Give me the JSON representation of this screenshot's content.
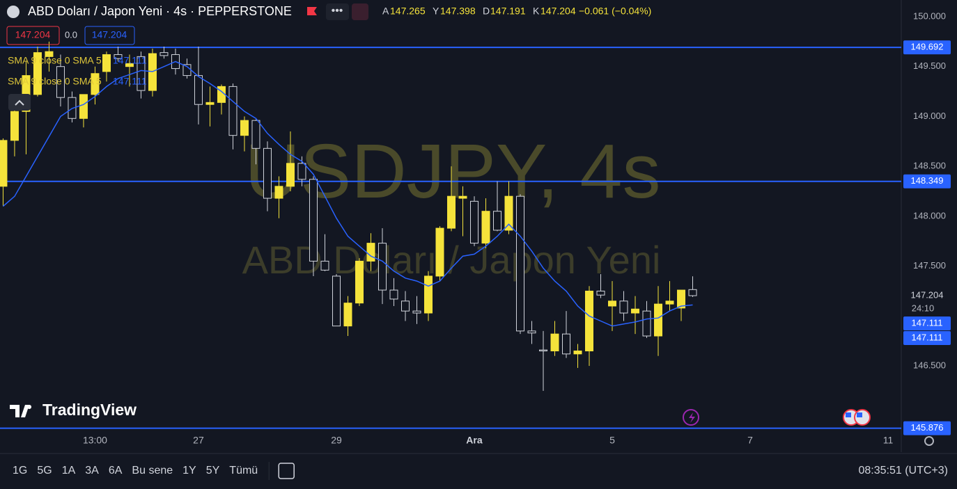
{
  "header": {
    "title": "ABD Doları / Japon Yeni · 4s · PEPPERSTONE",
    "ohlc_labels": [
      "A",
      "Y",
      "D",
      "K"
    ],
    "change": "−0.061 (−0.04%)"
  },
  "legend": {
    "spread": "0.0",
    "indicators": [
      {
        "label": "SMA 9 close 0 SMA 5"
      },
      {
        "label": "SMA 9 close 0 SMA 5"
      }
    ]
  },
  "watermark": {
    "symbol": "USDJPY, 4s",
    "name": "ABD Doları / Japon Yeni"
  },
  "countdown": "24:10",
  "logo": "TradingView",
  "toolbar": {
    "ranges": [
      "1G",
      "5G",
      "1A",
      "3A",
      "6A",
      "Bu sene",
      "1Y",
      "5Y",
      "Tümü"
    ],
    "clock": "08:35:51 (UTC+3)"
  },
  "chart_data": {
    "type": "candlestick",
    "up_color": "#f5e33b",
    "down_color": "#d1d4dc",
    "open": [
      148.3,
      148.76,
      149.05,
      149.22,
      149.6,
      149.5,
      149.19,
      148.98,
      149.22,
      149.45,
      149.62,
      149.5,
      149.6,
      149.26,
      149.64,
      149.62,
      149.52,
      149.41,
      149.12,
      149.14,
      149.3,
      148.81,
      148.96,
      148.68,
      148.18,
      148.3,
      148.53,
      148.37,
      147.55,
      147.4,
      146.9,
      147.13,
      147.55,
      147.73,
      147.26,
      147.15,
      147.05,
      147.03,
      147.4,
      147.88,
      148.18,
      148.15,
      147.73,
      148.05,
      147.86,
      148.2,
      146.85,
      146.66,
      146.65,
      146.82,
      146.62,
      146.65,
      147.25,
      147.1,
      147.15,
      147.03,
      147.05,
      146.8,
      147.12,
      147.08,
      147.265
    ],
    "high": [
      148.78,
      149.22,
      149.55,
      149.7,
      149.75,
      149.62,
      149.25,
      149.2,
      149.5,
      149.65,
      149.7,
      149.62,
      149.65,
      149.68,
      149.7,
      149.68,
      149.58,
      149.7,
      149.3,
      149.32,
      149.33,
      149.0,
      148.97,
      148.75,
      148.4,
      148.85,
      148.6,
      148.4,
      147.82,
      147.42,
      147.2,
      147.58,
      147.83,
      147.88,
      147.38,
      147.25,
      147.2,
      147.45,
      147.9,
      148.5,
      148.3,
      148.2,
      148.18,
      148.35,
      148.35,
      148.22,
      146.95,
      146.85,
      146.95,
      147.05,
      146.72,
      147.3,
      147.42,
      147.35,
      147.25,
      147.2,
      147.15,
      147.3,
      147.35,
      147.25,
      147.398
    ],
    "low": [
      148.1,
      148.6,
      148.62,
      149.2,
      149.45,
      149.1,
      148.94,
      148.89,
      149.12,
      149.35,
      149.55,
      149.3,
      149.18,
      149.2,
      149.58,
      149.42,
      149.38,
      148.92,
      148.9,
      149.02,
      148.67,
      148.65,
      148.52,
      148.05,
      147.98,
      148.25,
      148.3,
      147.4,
      147.45,
      146.9,
      146.8,
      147.1,
      147.45,
      147.12,
      147.1,
      146.95,
      146.92,
      146.95,
      147.35,
      147.85,
      147.8,
      147.7,
      147.68,
      147.85,
      147.82,
      146.82,
      146.72,
      146.25,
      146.6,
      146.58,
      146.48,
      146.5,
      147.18,
      146.85,
      146.95,
      146.82,
      146.78,
      146.6,
      147.05,
      146.95,
      147.191
    ],
    "close": [
      148.76,
      149.05,
      149.41,
      149.64,
      149.65,
      149.19,
      148.98,
      149.22,
      149.43,
      149.62,
      149.58,
      149.53,
      149.26,
      149.63,
      149.61,
      149.48,
      149.41,
      149.12,
      149.14,
      149.3,
      148.81,
      148.96,
      148.68,
      148.18,
      148.3,
      148.53,
      148.37,
      147.55,
      147.46,
      146.9,
      147.13,
      147.55,
      147.73,
      147.26,
      147.17,
      147.05,
      147.03,
      147.4,
      147.88,
      148.2,
      148.2,
      147.73,
      148.05,
      147.86,
      148.2,
      146.85,
      146.83,
      146.65,
      146.82,
      146.62,
      146.65,
      147.25,
      147.21,
      147.15,
      147.03,
      147.07,
      146.8,
      147.12,
      147.15,
      147.26,
      147.204
    ],
    "sma": {
      "color": "#2962ff",
      "values": [
        148.1,
        148.2,
        148.4,
        148.6,
        148.8,
        149.0,
        149.08,
        149.12,
        149.2,
        149.3,
        149.38,
        149.42,
        149.46,
        149.45,
        149.5,
        149.55,
        149.5,
        149.4,
        149.33,
        149.25,
        149.15,
        149.05,
        148.98,
        148.83,
        148.72,
        148.62,
        148.55,
        148.42,
        148.2,
        147.98,
        147.8,
        147.7,
        147.6,
        147.55,
        147.45,
        147.38,
        147.35,
        147.3,
        147.35,
        147.48,
        147.6,
        147.62,
        147.7,
        147.8,
        147.92,
        147.8,
        147.65,
        147.48,
        147.35,
        147.25,
        147.1,
        147.0,
        146.95,
        146.9,
        146.92,
        146.94,
        146.97,
        146.98,
        147.05,
        147.1,
        147.111
      ]
    },
    "hlines": [
      {
        "value": 149.692,
        "color": "#2962ff"
      },
      {
        "value": 148.349,
        "color": "#2962ff"
      },
      {
        "value": 145.876,
        "color": "#2962ff"
      }
    ],
    "xlim": [
      -0.27,
      78.15
    ],
    "ylim": [
      145.866,
      150.167
    ],
    "xticks": [
      {
        "value": 8,
        "label": "13:00"
      },
      {
        "value": 17,
        "label": "27"
      },
      29,
      {
        "value": 41,
        "label": "Ara"
      },
      {
        "value": 53,
        "label": "5"
      },
      {
        "value": 65,
        "label": "7"
      },
      {
        "value": 77,
        "label": "11"
      }
    ],
    "yticks": [
      {
        "value": 150,
        "label": "150.000"
      },
      {
        "value": 149.5,
        "label": "149.500"
      },
      {
        "value": 149,
        "label": "149.000"
      },
      {
        "value": 148.5,
        "label": "148.500"
      },
      {
        "value": 148,
        "label": "148.000"
      },
      {
        "value": 147.5,
        "label": "147.500"
      },
      {
        "value": 146.5,
        "label": "146.500"
      }
    ],
    "grid": false
  }
}
